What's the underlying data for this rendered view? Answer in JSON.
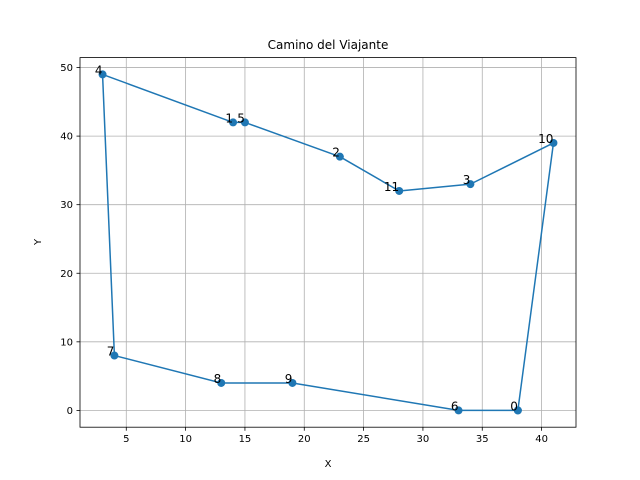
{
  "chart_data": {
    "type": "line",
    "title": "Camino del Viajante",
    "xlabel": "X",
    "ylabel": "Y",
    "xlim": [
      1.1,
      42.9
    ],
    "ylim": [
      -2.45,
      51.45
    ],
    "xticks": [
      5,
      10,
      15,
      20,
      25,
      30,
      35,
      40
    ],
    "yticks": [
      0,
      10,
      20,
      30,
      40,
      50
    ],
    "grid": true,
    "marker": "circle",
    "color": "#1f77b4",
    "points": [
      {
        "label": "0",
        "x": 38,
        "y": 0
      },
      {
        "label": "6",
        "x": 33,
        "y": 0
      },
      {
        "label": "9",
        "x": 19,
        "y": 4
      },
      {
        "label": "8",
        "x": 13,
        "y": 4
      },
      {
        "label": "7",
        "x": 4,
        "y": 8
      },
      {
        "label": "4",
        "x": 3,
        "y": 49
      },
      {
        "label": "1",
        "x": 14,
        "y": 42
      },
      {
        "label": "5",
        "x": 15,
        "y": 42
      },
      {
        "label": "2",
        "x": 23,
        "y": 37
      },
      {
        "label": "11",
        "x": 28,
        "y": 32
      },
      {
        "label": "3",
        "x": 34,
        "y": 33
      },
      {
        "label": "10",
        "x": 41,
        "y": 39
      },
      {
        "label": "0",
        "x": 38,
        "y": 0
      }
    ]
  }
}
